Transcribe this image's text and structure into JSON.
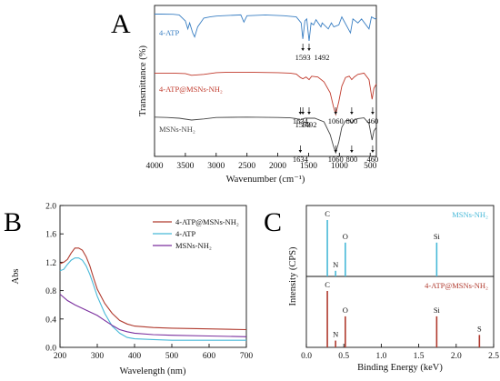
{
  "panels": {
    "A": {
      "letter": "A"
    },
    "B": {
      "letter": "B"
    },
    "C": {
      "letter": "C"
    }
  },
  "chart_data": [
    {
      "panel": "A",
      "type": "line",
      "xlabel": "Wavenumber (cm⁻¹)",
      "ylabel": "Transmittance (%)",
      "xlim": [
        4000,
        400
      ],
      "x_reversed": true,
      "xticks": [
        4000,
        3500,
        3000,
        2500,
        2000,
        1500,
        1000,
        500
      ],
      "yticks_visible": false,
      "series": [
        {
          "name": "4-ATP",
          "color": "#3a7fc3",
          "label_position": "top-left",
          "points": [
            [
              4000,
              0.92
            ],
            [
              3900,
              0.92
            ],
            [
              3700,
              0.915
            ],
            [
              3600,
              0.9
            ],
            [
              3500,
              0.75
            ],
            [
              3460,
              0.55
            ],
            [
              3430,
              0.7
            ],
            [
              3380,
              0.45
            ],
            [
              3350,
              0.35
            ],
            [
              3300,
              0.6
            ],
            [
              3200,
              0.82
            ],
            [
              3100,
              0.85
            ],
            [
              3000,
              0.87
            ],
            [
              2900,
              0.88
            ],
            [
              2600,
              0.9
            ],
            [
              2550,
              0.72
            ],
            [
              2500,
              0.88
            ],
            [
              2200,
              0.9
            ],
            [
              1900,
              0.88
            ],
            [
              1700,
              0.85
            ],
            [
              1620,
              0.7
            ],
            [
              1593,
              0.3
            ],
            [
              1560,
              0.75
            ],
            [
              1530,
              0.8
            ],
            [
              1492,
              0.25
            ],
            [
              1460,
              0.7
            ],
            [
              1420,
              0.65
            ],
            [
              1380,
              0.78
            ],
            [
              1300,
              0.6
            ],
            [
              1280,
              0.7
            ],
            [
              1180,
              0.55
            ],
            [
              1130,
              0.7
            ],
            [
              1090,
              0.6
            ],
            [
              1010,
              0.65
            ],
            [
              960,
              0.85
            ],
            [
              820,
              0.45
            ],
            [
              780,
              0.8
            ],
            [
              700,
              0.7
            ],
            [
              640,
              0.8
            ],
            [
              520,
              0.55
            ],
            [
              480,
              0.85
            ],
            [
              420,
              0.8
            ],
            [
              400,
              0.82
            ]
          ],
          "annotations": [
            {
              "text": "1593",
              "x": 1593
            },
            {
              "text": "1492",
              "x": 1492
            }
          ]
        },
        {
          "name": "4-ATP@MSNs-NH₂",
          "color": "#c0392b",
          "label_position": "left",
          "points": [
            [
              4000,
              0.95
            ],
            [
              3700,
              0.95
            ],
            [
              3500,
              0.94
            ],
            [
              3400,
              0.9
            ],
            [
              3200,
              0.92
            ],
            [
              3000,
              0.96
            ],
            [
              2800,
              0.97
            ],
            [
              2500,
              0.97
            ],
            [
              2000,
              0.96
            ],
            [
              1800,
              0.95
            ],
            [
              1700,
              0.93
            ],
            [
              1634,
              0.85
            ],
            [
              1593,
              0.82
            ],
            [
              1540,
              0.86
            ],
            [
              1492,
              0.8
            ],
            [
              1450,
              0.88
            ],
            [
              1350,
              0.86
            ],
            [
              1250,
              0.75
            ],
            [
              1150,
              0.5
            ],
            [
              1100,
              0.2
            ],
            [
              1060,
              0.0
            ],
            [
              1010,
              0.3
            ],
            [
              960,
              0.65
            ],
            [
              900,
              0.85
            ],
            [
              840,
              0.88
            ],
            [
              800,
              0.8
            ],
            [
              760,
              0.86
            ],
            [
              700,
              0.92
            ],
            [
              600,
              0.95
            ],
            [
              520,
              0.8
            ],
            [
              470,
              0.35
            ],
            [
              440,
              0.6
            ],
            [
              400,
              0.7
            ]
          ],
          "annotations": [
            {
              "text": "1634",
              "x": 1634
            },
            {
              "text": "1593",
              "x": 1593
            },
            {
              "text": "1492",
              "x": 1492
            },
            {
              "text": "1060",
              "x": 1060
            },
            {
              "text": "800",
              "x": 800
            },
            {
              "text": "460",
              "x": 460
            }
          ]
        },
        {
          "name": "MSNs-NH₂",
          "color": "#444444",
          "label_position": "left",
          "points": [
            [
              4000,
              0.98
            ],
            [
              3800,
              0.97
            ],
            [
              3600,
              0.95
            ],
            [
              3400,
              0.9
            ],
            [
              3200,
              0.93
            ],
            [
              3000,
              0.97
            ],
            [
              2500,
              0.98
            ],
            [
              2000,
              0.97
            ],
            [
              1800,
              0.96
            ],
            [
              1700,
              0.94
            ],
            [
              1634,
              0.9
            ],
            [
              1560,
              0.95
            ],
            [
              1400,
              0.95
            ],
            [
              1250,
              0.85
            ],
            [
              1150,
              0.5
            ],
            [
              1100,
              0.2
            ],
            [
              1060,
              0.0
            ],
            [
              1010,
              0.3
            ],
            [
              960,
              0.7
            ],
            [
              900,
              0.88
            ],
            [
              840,
              0.9
            ],
            [
              800,
              0.82
            ],
            [
              760,
              0.9
            ],
            [
              700,
              0.94
            ],
            [
              600,
              0.96
            ],
            [
              520,
              0.8
            ],
            [
              470,
              0.35
            ],
            [
              440,
              0.6
            ],
            [
              400,
              0.7
            ]
          ],
          "annotations": [
            {
              "text": "1634",
              "x": 1634
            },
            {
              "text": "1060",
              "x": 1060
            },
            {
              "text": "800",
              "x": 800
            },
            {
              "text": "460",
              "x": 460
            }
          ]
        }
      ]
    },
    {
      "panel": "B",
      "type": "line",
      "xlabel": "Wavelength (nm)",
      "ylabel": "Abs",
      "xlim": [
        200,
        700
      ],
      "ylim": [
        0.0,
        2.0
      ],
      "xticks": [
        200,
        300,
        400,
        500,
        600,
        700
      ],
      "yticks": [
        0.0,
        0.4,
        0.8,
        1.2,
        1.6,
        2.0
      ],
      "ytick_labels": [
        "0.0",
        "0.4",
        "0.8",
        "1.2",
        "1.6",
        "2.0"
      ],
      "legend_position": "top-right",
      "series": [
        {
          "name": "4-ATP@MSNs-NH₂",
          "color": "#b03a2e",
          "points": [
            [
              200,
              1.18
            ],
            [
              210,
              1.2
            ],
            [
              220,
              1.24
            ],
            [
              230,
              1.33
            ],
            [
              240,
              1.4
            ],
            [
              250,
              1.4
            ],
            [
              260,
              1.37
            ],
            [
              270,
              1.28
            ],
            [
              280,
              1.15
            ],
            [
              290,
              0.98
            ],
            [
              300,
              0.82
            ],
            [
              320,
              0.62
            ],
            [
              340,
              0.48
            ],
            [
              360,
              0.38
            ],
            [
              380,
              0.33
            ],
            [
              400,
              0.3
            ],
            [
              450,
              0.28
            ],
            [
              500,
              0.27
            ],
            [
              600,
              0.26
            ],
            [
              700,
              0.25
            ]
          ]
        },
        {
          "name": "4-ATP",
          "color": "#48b9d8",
          "points": [
            [
              200,
              1.08
            ],
            [
              210,
              1.1
            ],
            [
              220,
              1.17
            ],
            [
              230,
              1.23
            ],
            [
              240,
              1.26
            ],
            [
              250,
              1.26
            ],
            [
              260,
              1.23
            ],
            [
              270,
              1.15
            ],
            [
              280,
              1.03
            ],
            [
              290,
              0.88
            ],
            [
              300,
              0.72
            ],
            [
              320,
              0.48
            ],
            [
              340,
              0.3
            ],
            [
              360,
              0.2
            ],
            [
              380,
              0.14
            ],
            [
              400,
              0.12
            ],
            [
              450,
              0.11
            ],
            [
              500,
              0.1
            ],
            [
              600,
              0.1
            ],
            [
              700,
              0.1
            ]
          ]
        },
        {
          "name": "MSNs-NH₂",
          "color": "#7a2f9e",
          "points": [
            [
              200,
              0.75
            ],
            [
              220,
              0.66
            ],
            [
              240,
              0.6
            ],
            [
              260,
              0.55
            ],
            [
              280,
              0.5
            ],
            [
              300,
              0.45
            ],
            [
              320,
              0.38
            ],
            [
              340,
              0.31
            ],
            [
              360,
              0.25
            ],
            [
              380,
              0.22
            ],
            [
              400,
              0.2
            ],
            [
              450,
              0.18
            ],
            [
              500,
              0.17
            ],
            [
              600,
              0.16
            ],
            [
              700,
              0.15
            ]
          ]
        }
      ]
    },
    {
      "panel": "C",
      "type": "bar",
      "subtype": "stick-spectrum",
      "xlabel": "Binding Energy (keV)",
      "ylabel": "Intensity (CPS)",
      "xlim": [
        0.0,
        2.5
      ],
      "xticks": [
        0.0,
        0.5,
        1.0,
        1.5,
        2.0,
        2.5
      ],
      "xtick_labels": [
        "0.0",
        "0.5",
        "1.0",
        "1.5",
        "2.0",
        "2.5"
      ],
      "yticks_visible": false,
      "series": [
        {
          "name": "MSNs-NH₂",
          "color": "#48b9d8",
          "label_position": "top-right",
          "peaks": [
            {
              "element": "C",
              "x": 0.28,
              "value": 1.0
            },
            {
              "element": "N",
              "x": 0.39,
              "value": 0.1
            },
            {
              "element": "O",
              "x": 0.52,
              "value": 0.6
            },
            {
              "element": "Si",
              "x": 1.74,
              "value": 0.6
            }
          ]
        },
        {
          "name": "4-ATP@MSNs-NH₂",
          "color": "#b03a2e",
          "label_position": "top-right",
          "peaks": [
            {
              "element": "C",
              "x": 0.28,
              "value": 1.0
            },
            {
              "element": "N",
              "x": 0.39,
              "value": 0.12
            },
            {
              "element": "O",
              "x": 0.52,
              "value": 0.55
            },
            {
              "element": "Si",
              "x": 1.74,
              "value": 0.55
            },
            {
              "element": "S",
              "x": 2.31,
              "value": 0.22
            }
          ]
        }
      ]
    }
  ]
}
